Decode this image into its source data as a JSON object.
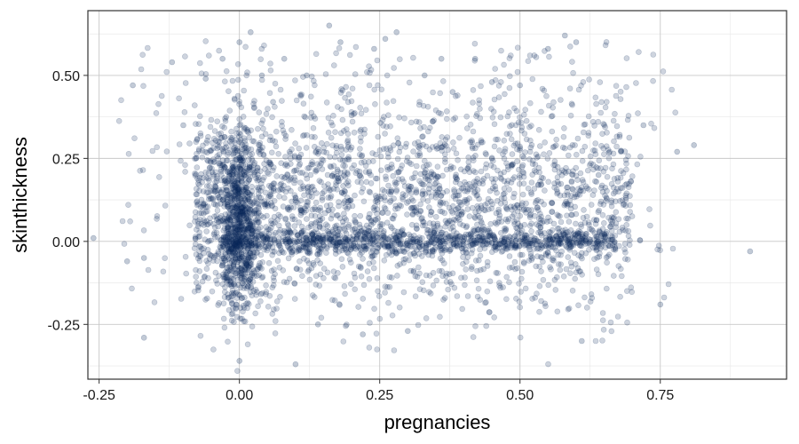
{
  "chart_data": {
    "type": "scatter",
    "title": "",
    "xlabel": "pregnancies",
    "ylabel": "skinthickness",
    "xlim": [
      -0.27,
      0.975
    ],
    "ylim": [
      -0.415,
      0.695
    ],
    "x_ticks": [
      -0.25,
      0.0,
      0.25,
      0.5,
      0.75
    ],
    "x_tick_labels": [
      "-0.25",
      "0.00",
      "0.25",
      "0.50",
      "0.75"
    ],
    "y_ticks": [
      -0.25,
      0.0,
      0.25,
      0.5
    ],
    "y_tick_labels": [
      "-0.25",
      "0.00",
      "0.25",
      "0.50"
    ],
    "grid": true,
    "legend": "none",
    "point_color": "#0b2a5c",
    "point_opacity": 0.2,
    "series": [
      {
        "x": [
          -0.26,
          -0.2,
          -0.19,
          -0.17,
          -0.12,
          -0.1,
          -0.06,
          -0.03,
          -0.01,
          0.0,
          0.0,
          0.02,
          0.04,
          0.06,
          0.08,
          0.1,
          0.12,
          0.14,
          0.16,
          0.18,
          0.2,
          0.22,
          0.24,
          0.26,
          0.28,
          0.3,
          0.33,
          0.36,
          0.38,
          0.42,
          0.45,
          0.5,
          0.55,
          0.58,
          0.6,
          0.61,
          0.64,
          0.68,
          0.72,
          0.75,
          0.78,
          0.81,
          0.91,
          0.0,
          0.09,
          -0.17
        ],
        "y": [
          0.01,
          -0.06,
          0.47,
          -0.29,
          0.54,
          0.35,
          0.49,
          0.55,
          0.22,
          0.6,
          -0.36,
          0.63,
          0.5,
          0.42,
          0.55,
          -0.37,
          0.5,
          -0.25,
          0.65,
          0.6,
          0.38,
          -0.28,
          0.58,
          0.61,
          0.63,
          -0.27,
          0.5,
          0.55,
          0.45,
          0.55,
          0.48,
          0.47,
          0.58,
          0.62,
          0.6,
          -0.3,
          0.2,
          0.27,
          0.35,
          -0.19,
          0.27,
          0.29,
          -0.03,
          0.15,
          0.03,
          -0.05
        ]
      }
    ]
  }
}
